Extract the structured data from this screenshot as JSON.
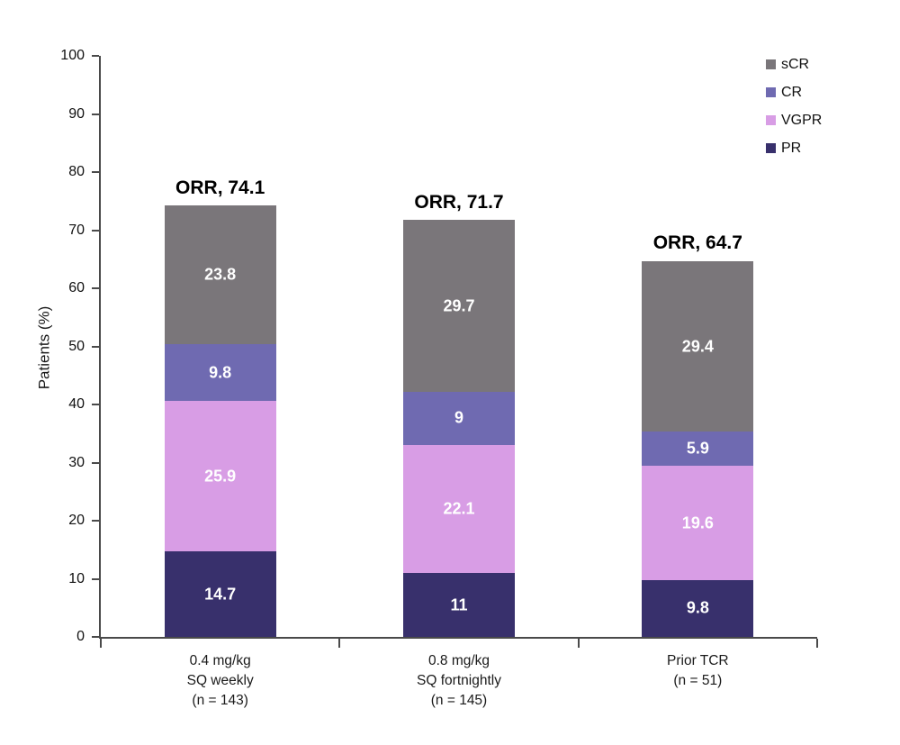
{
  "chart_data": {
    "type": "bar",
    "stacked": true,
    "title": "",
    "xlabel": "",
    "ylabel": "Patients (%)",
    "ylim": [
      0,
      100
    ],
    "yticks": [
      0,
      10,
      20,
      30,
      40,
      50,
      60,
      70,
      80,
      90,
      100
    ],
    "grid": false,
    "legend_position": "top-right",
    "axis_color": "#4a4a4a",
    "value_label_color": "#ffffff",
    "categories": [
      {
        "lines": [
          "0.4 mg/kg",
          "SQ weekly",
          "(n = 143)"
        ],
        "orr_value": 74.1,
        "orr_label": "ORR, 74.1"
      },
      {
        "lines": [
          "0.8 mg/kg",
          "SQ fortnightly",
          "(n = 145)"
        ],
        "orr_value": 71.7,
        "orr_label": "ORR, 71.7"
      },
      {
        "lines": [
          "Prior TCR",
          "(n = 51)"
        ],
        "orr_value": 64.7,
        "orr_label": "ORR, 64.7"
      }
    ],
    "series": [
      {
        "name": "PR",
        "color": "#38306C",
        "values": [
          14.7,
          11,
          9.8
        ],
        "labels": [
          "14.7",
          "11",
          "9.8"
        ]
      },
      {
        "name": "VGPR",
        "color": "#D89DE5",
        "values": [
          25.9,
          22.1,
          19.6
        ],
        "labels": [
          "25.9",
          "22.1",
          "19.6"
        ]
      },
      {
        "name": "CR",
        "color": "#6F6AB1",
        "values": [
          9.8,
          9,
          5.9
        ],
        "labels": [
          "9.8",
          "9",
          "5.9"
        ]
      },
      {
        "name": "sCR",
        "color": "#7A767A",
        "values": [
          23.8,
          29.7,
          29.4
        ],
        "labels": [
          "23.8",
          "29.7",
          "29.4"
        ]
      }
    ],
    "legend_order": [
      "sCR",
      "CR",
      "VGPR",
      "PR"
    ]
  }
}
